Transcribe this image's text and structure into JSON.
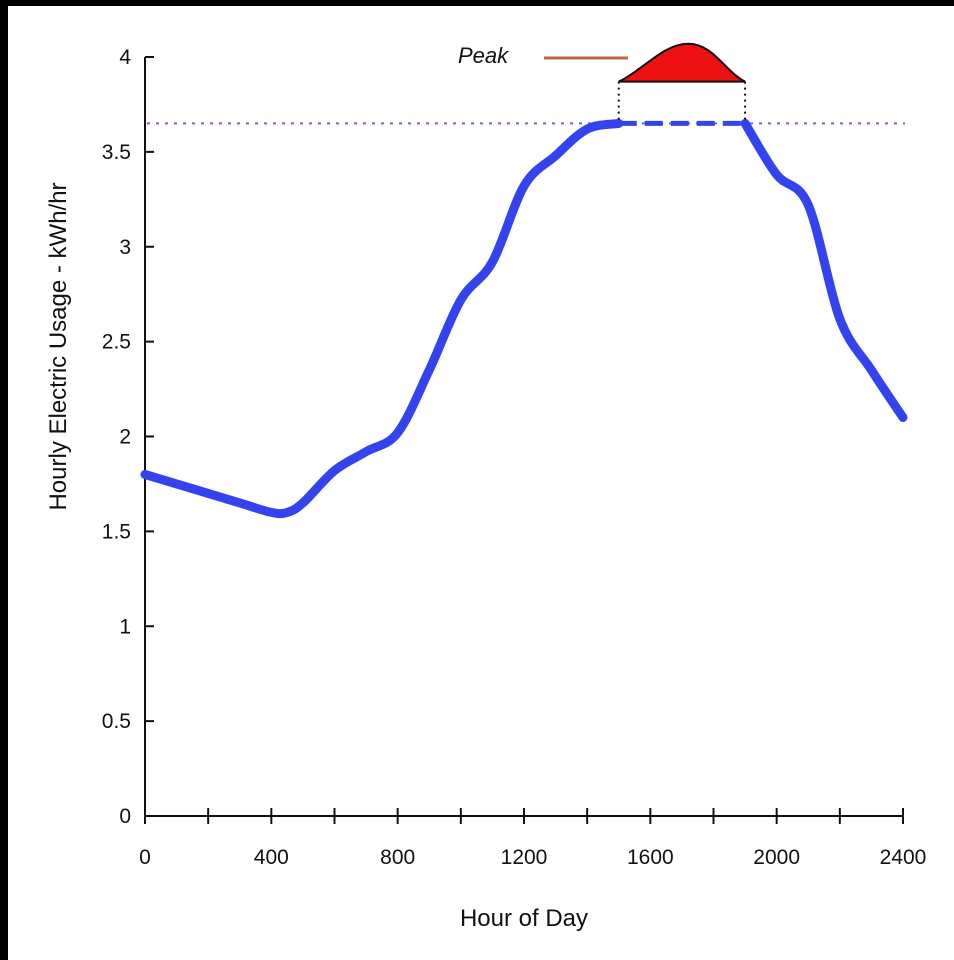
{
  "chart_data": {
    "type": "line",
    "title": "",
    "xlabel": "Hour of Day",
    "ylabel": "Hourly Electric Usage - kWh/hr",
    "xlim": [
      0,
      2400
    ],
    "ylim": [
      0,
      4
    ],
    "x_ticks": [
      0,
      400,
      800,
      1200,
      1600,
      2000,
      2400
    ],
    "x_tick_labels": [
      "0",
      "400",
      "800",
      "1200",
      "1600",
      "2000",
      "2400"
    ],
    "x_minor_ticks": [
      200,
      600,
      1000,
      1400,
      1800,
      2200
    ],
    "y_ticks": [
      0,
      0.5,
      1,
      1.5,
      2,
      2.5,
      3,
      3.5,
      4
    ],
    "y_tick_labels": [
      "0",
      "0.5",
      "1",
      "1.5",
      "2",
      "2.5",
      "3",
      "3.5",
      "4"
    ],
    "grid": false,
    "colors": {
      "line": "#3344ee",
      "peak_fill": "#ee1111",
      "peak_label_line": "#b86a3c",
      "reference": "#3344ee"
    },
    "series": [
      {
        "x": [
          0,
          100,
          200,
          300,
          400,
          450,
          500,
          600,
          700,
          800,
          900,
          1000,
          1100,
          1200,
          1300,
          1400,
          1500
        ],
        "y": [
          1.8,
          1.75,
          1.7,
          1.65,
          1.6,
          1.6,
          1.65,
          1.82,
          1.92,
          2.02,
          2.35,
          2.72,
          2.92,
          3.32,
          3.48,
          3.62,
          3.65
        ]
      },
      {
        "x": [
          1900,
          2000,
          2100,
          2200,
          2300,
          2400
        ],
        "y": [
          3.65,
          3.38,
          3.22,
          2.62,
          2.35,
          2.1
        ]
      }
    ],
    "capped_segment": {
      "x": [
        1500,
        1900
      ],
      "y": 3.65
    },
    "reference_line": {
      "y": 3.65,
      "style": "dotted"
    },
    "annotation": {
      "label": "Peak",
      "x_range": [
        1500,
        1900
      ],
      "base_y": 3.87,
      "top_y": 4.07,
      "apex_x": 1720
    }
  }
}
